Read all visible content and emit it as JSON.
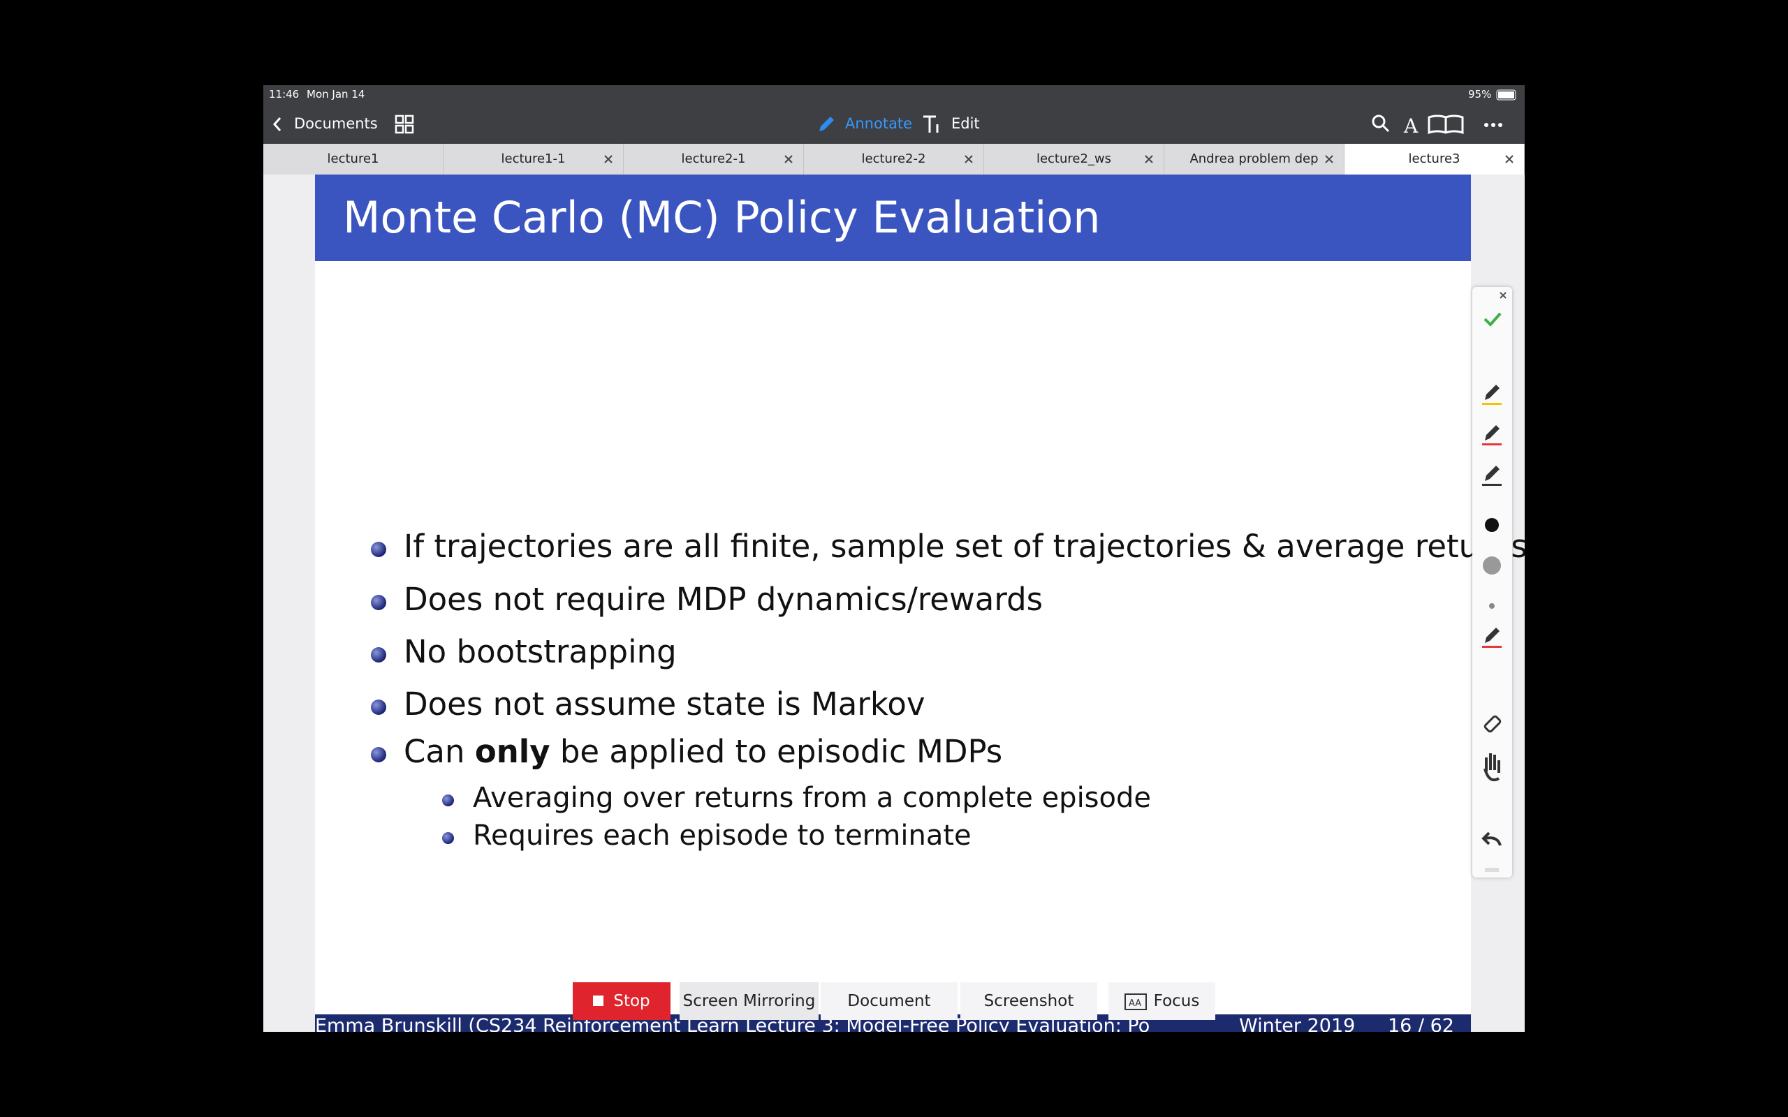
{
  "status": {
    "time": "11:46",
    "date": "Mon Jan 14",
    "battery": "95%"
  },
  "toolbar": {
    "back": "Documents",
    "annotate": "Annotate",
    "edit": "Edit"
  },
  "tabs": [
    "lecture1",
    "lecture1-1",
    "lecture2-1",
    "lecture2-2",
    "lecture2_ws",
    "Andrea problem dep",
    "lecture3"
  ],
  "slide": {
    "title": "Monte Carlo (MC) Policy Evaluation",
    "bullets": [
      {
        "parts": [
          "If trajectories are all finite, sample set of trajectories & average returns"
        ]
      },
      {
        "parts": [
          "Does not require MDP dynamics/rewards"
        ]
      },
      {
        "parts": [
          "No bootstrapping"
        ]
      },
      {
        "parts": [
          "Does not assume state is Markov"
        ]
      },
      {
        "parts": [
          "Can ",
          "only",
          " be applied to episodic MDPs"
        ],
        "sub": [
          "Averaging over returns from a complete episode",
          "Requires each episode to terminate"
        ]
      }
    ],
    "footer": {
      "left": "Emma Brunskill (CS234 Reinforcement Learn Lecture 3: Model-Free Policy Evaluation: Po",
      "date": "Winter 2019",
      "page": "16 / 62"
    }
  },
  "overlay": {
    "stop": "Stop",
    "mirroring": "Screen Mirroring",
    "document": "Document",
    "screenshot": "Screenshot",
    "focus": "Focus"
  }
}
